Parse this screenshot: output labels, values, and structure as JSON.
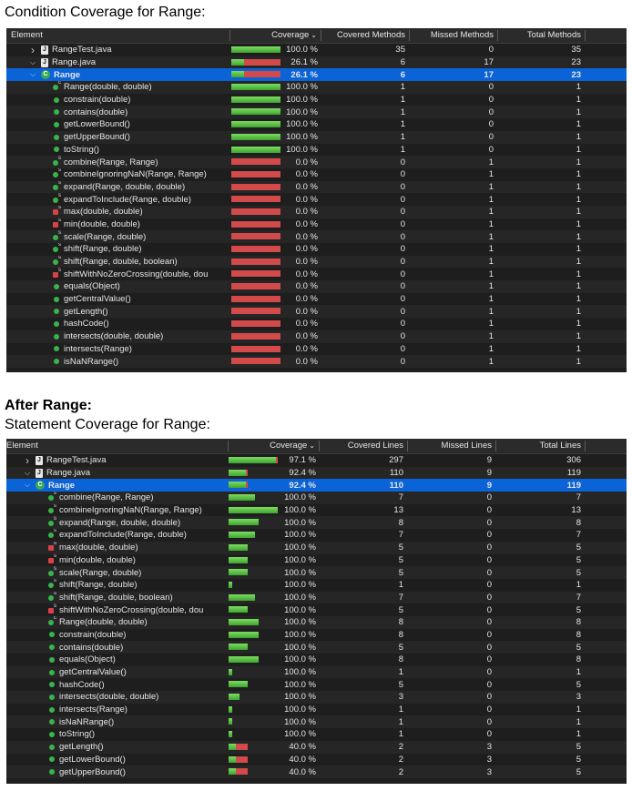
{
  "captions": {
    "condition_title": "Condition Coverage for Range:",
    "after_title": "After Range:",
    "statement_title": "Statement Coverage for Range:"
  },
  "condition_table": {
    "headers": {
      "element": "Element",
      "coverage": "Coverage",
      "covered": "Covered Methods",
      "missed": "Missed Methods",
      "total": "Total Methods"
    },
    "rows": [
      {
        "name": "RangeTest.java",
        "kind": "file",
        "level": 1,
        "exp": "collapsed",
        "pct": "100.0 %",
        "cov": 1.0,
        "covered": "35",
        "missed": "0",
        "total": "35"
      },
      {
        "name": "Range.java",
        "kind": "file",
        "level": 1,
        "exp": "expanded",
        "pct": "26.1 %",
        "cov": 0.261,
        "covered": "6",
        "missed": "17",
        "total": "23"
      },
      {
        "name": "Range",
        "kind": "class",
        "level": 2,
        "exp": "expanded",
        "pct": "26.1 %",
        "cov": 0.261,
        "covered": "6",
        "missed": "17",
        "total": "23",
        "selected": true
      },
      {
        "name": "Range(double, double)",
        "kind": "m-ctor",
        "level": 3,
        "pct": "100.0 %",
        "cov": 1.0,
        "covered": "1",
        "missed": "0",
        "total": "1"
      },
      {
        "name": "constrain(double)",
        "kind": "m-pub",
        "level": 3,
        "pct": "100.0 %",
        "cov": 1.0,
        "covered": "1",
        "missed": "0",
        "total": "1"
      },
      {
        "name": "contains(double)",
        "kind": "m-pub",
        "level": 3,
        "pct": "100.0 %",
        "cov": 1.0,
        "covered": "1",
        "missed": "0",
        "total": "1"
      },
      {
        "name": "getLowerBound()",
        "kind": "m-pub",
        "level": 3,
        "pct": "100.0 %",
        "cov": 1.0,
        "covered": "1",
        "missed": "0",
        "total": "1"
      },
      {
        "name": "getUpperBound()",
        "kind": "m-pub",
        "level": 3,
        "pct": "100.0 %",
        "cov": 1.0,
        "covered": "1",
        "missed": "0",
        "total": "1"
      },
      {
        "name": "toString()",
        "kind": "m-pub",
        "level": 3,
        "pct": "100.0 %",
        "cov": 1.0,
        "covered": "1",
        "missed": "0",
        "total": "1"
      },
      {
        "name": "combine(Range, Range)",
        "kind": "m-stat-g",
        "level": 3,
        "pct": "0.0 %",
        "cov": 0.0,
        "covered": "0",
        "missed": "1",
        "total": "1"
      },
      {
        "name": "combineIgnoringNaN(Range, Range)",
        "kind": "m-stat-g",
        "level": 3,
        "pct": "0.0 %",
        "cov": 0.0,
        "covered": "0",
        "missed": "1",
        "total": "1"
      },
      {
        "name": "expand(Range, double, double)",
        "kind": "m-stat-g",
        "level": 3,
        "pct": "0.0 %",
        "cov": 0.0,
        "covered": "0",
        "missed": "1",
        "total": "1"
      },
      {
        "name": "expandToInclude(Range, double)",
        "kind": "m-stat-g",
        "level": 3,
        "pct": "0.0 %",
        "cov": 0.0,
        "covered": "0",
        "missed": "1",
        "total": "1"
      },
      {
        "name": "max(double, double)",
        "kind": "m-stat-r",
        "level": 3,
        "pct": "0.0 %",
        "cov": 0.0,
        "covered": "0",
        "missed": "1",
        "total": "1"
      },
      {
        "name": "min(double, double)",
        "kind": "m-stat-r",
        "level": 3,
        "pct": "0.0 %",
        "cov": 0.0,
        "covered": "0",
        "missed": "1",
        "total": "1"
      },
      {
        "name": "scale(Range, double)",
        "kind": "m-stat-g",
        "level": 3,
        "pct": "0.0 %",
        "cov": 0.0,
        "covered": "0",
        "missed": "1",
        "total": "1"
      },
      {
        "name": "shift(Range, double)",
        "kind": "m-stat-g",
        "level": 3,
        "pct": "0.0 %",
        "cov": 0.0,
        "covered": "0",
        "missed": "1",
        "total": "1"
      },
      {
        "name": "shift(Range, double, boolean)",
        "kind": "m-stat-g",
        "level": 3,
        "pct": "0.0 %",
        "cov": 0.0,
        "covered": "0",
        "missed": "1",
        "total": "1"
      },
      {
        "name": "shiftWithNoZeroCrossing(double, dou",
        "kind": "m-stat-r",
        "level": 3,
        "pct": "0.0 %",
        "cov": 0.0,
        "covered": "0",
        "missed": "1",
        "total": "1"
      },
      {
        "name": "equals(Object)",
        "kind": "m-pub",
        "level": 3,
        "pct": "0.0 %",
        "cov": 0.0,
        "covered": "0",
        "missed": "1",
        "total": "1"
      },
      {
        "name": "getCentralValue()",
        "kind": "m-pub",
        "level": 3,
        "pct": "0.0 %",
        "cov": 0.0,
        "covered": "0",
        "missed": "1",
        "total": "1"
      },
      {
        "name": "getLength()",
        "kind": "m-pub",
        "level": 3,
        "pct": "0.0 %",
        "cov": 0.0,
        "covered": "0",
        "missed": "1",
        "total": "1"
      },
      {
        "name": "hashCode()",
        "kind": "m-pub",
        "level": 3,
        "pct": "0.0 %",
        "cov": 0.0,
        "covered": "0",
        "missed": "1",
        "total": "1"
      },
      {
        "name": "intersects(double, double)",
        "kind": "m-pub",
        "level": 3,
        "pct": "0.0 %",
        "cov": 0.0,
        "covered": "0",
        "missed": "1",
        "total": "1"
      },
      {
        "name": "intersects(Range)",
        "kind": "m-pub",
        "level": 3,
        "pct": "0.0 %",
        "cov": 0.0,
        "covered": "0",
        "missed": "1",
        "total": "1"
      },
      {
        "name": "isNaNRange()",
        "kind": "m-pub",
        "level": 3,
        "pct": "0.0 %",
        "cov": 0.0,
        "covered": "0",
        "missed": "1",
        "total": "1"
      }
    ]
  },
  "statement_table": {
    "headers": {
      "element": "Element",
      "coverage": "Coverage",
      "covered": "Covered Lines",
      "missed": "Missed Lines",
      "total": "Total Lines"
    },
    "rows": [
      {
        "name": "RangeTest.java",
        "kind": "file",
        "level": 1,
        "exp": "collapsed",
        "pct": "97.1 %",
        "cov": 0.971,
        "covered": "297",
        "missed": "9",
        "total": "306",
        "barlen": 1.0
      },
      {
        "name": "Range.java",
        "kind": "file",
        "level": 1,
        "exp": "expanded",
        "pct": "92.4 %",
        "cov": 0.924,
        "covered": "110",
        "missed": "9",
        "total": "119",
        "barlen": 0.39
      },
      {
        "name": "Range",
        "kind": "class",
        "level": 2,
        "exp": "expanded",
        "pct": "92.4 %",
        "cov": 0.924,
        "covered": "110",
        "missed": "9",
        "total": "119",
        "selected": true,
        "barlen": 0.39
      },
      {
        "name": "combine(Range, Range)",
        "kind": "m-stat-g",
        "level": 3,
        "pct": "100.0 %",
        "cov": 1.0,
        "covered": "7",
        "missed": "0",
        "total": "7",
        "barlen": 0.54
      },
      {
        "name": "combineIgnoringNaN(Range, Range)",
        "kind": "m-stat-g",
        "level": 3,
        "pct": "100.0 %",
        "cov": 1.0,
        "covered": "13",
        "missed": "0",
        "total": "13",
        "barlen": 1.0
      },
      {
        "name": "expand(Range, double, double)",
        "kind": "m-stat-g",
        "level": 3,
        "pct": "100.0 %",
        "cov": 1.0,
        "covered": "8",
        "missed": "0",
        "total": "8",
        "barlen": 0.62
      },
      {
        "name": "expandToInclude(Range, double)",
        "kind": "m-stat-g",
        "level": 3,
        "pct": "100.0 %",
        "cov": 1.0,
        "covered": "7",
        "missed": "0",
        "total": "7",
        "barlen": 0.54
      },
      {
        "name": "max(double, double)",
        "kind": "m-stat-r",
        "level": 3,
        "pct": "100.0 %",
        "cov": 1.0,
        "covered": "5",
        "missed": "0",
        "total": "5",
        "barlen": 0.39
      },
      {
        "name": "min(double, double)",
        "kind": "m-stat-r",
        "level": 3,
        "pct": "100.0 %",
        "cov": 1.0,
        "covered": "5",
        "missed": "0",
        "total": "5",
        "barlen": 0.39
      },
      {
        "name": "scale(Range, double)",
        "kind": "m-stat-g",
        "level": 3,
        "pct": "100.0 %",
        "cov": 1.0,
        "covered": "5",
        "missed": "0",
        "total": "5",
        "barlen": 0.39
      },
      {
        "name": "shift(Range, double)",
        "kind": "m-stat-g",
        "level": 3,
        "pct": "100.0 %",
        "cov": 1.0,
        "covered": "1",
        "missed": "0",
        "total": "1",
        "barlen": 0.08
      },
      {
        "name": "shift(Range, double, boolean)",
        "kind": "m-stat-g",
        "level": 3,
        "pct": "100.0 %",
        "cov": 1.0,
        "covered": "7",
        "missed": "0",
        "total": "7",
        "barlen": 0.54
      },
      {
        "name": "shiftWithNoZeroCrossing(double, dou",
        "kind": "m-stat-r",
        "level": 3,
        "pct": "100.0 %",
        "cov": 1.0,
        "covered": "5",
        "missed": "0",
        "total": "5",
        "barlen": 0.39
      },
      {
        "name": "Range(double, double)",
        "kind": "m-ctor",
        "level": 3,
        "pct": "100.0 %",
        "cov": 1.0,
        "covered": "8",
        "missed": "0",
        "total": "8",
        "barlen": 0.62
      },
      {
        "name": "constrain(double)",
        "kind": "m-pub",
        "level": 3,
        "pct": "100.0 %",
        "cov": 1.0,
        "covered": "8",
        "missed": "0",
        "total": "8",
        "barlen": 0.62
      },
      {
        "name": "contains(double)",
        "kind": "m-pub",
        "level": 3,
        "pct": "100.0 %",
        "cov": 1.0,
        "covered": "5",
        "missed": "0",
        "total": "5",
        "barlen": 0.39
      },
      {
        "name": "equals(Object)",
        "kind": "m-pub",
        "level": 3,
        "pct": "100.0 %",
        "cov": 1.0,
        "covered": "8",
        "missed": "0",
        "total": "8",
        "barlen": 0.62
      },
      {
        "name": "getCentralValue()",
        "kind": "m-pub",
        "level": 3,
        "pct": "100.0 %",
        "cov": 1.0,
        "covered": "1",
        "missed": "0",
        "total": "1",
        "barlen": 0.08
      },
      {
        "name": "hashCode()",
        "kind": "m-pub",
        "level": 3,
        "pct": "100.0 %",
        "cov": 1.0,
        "covered": "5",
        "missed": "0",
        "total": "5",
        "barlen": 0.39
      },
      {
        "name": "intersects(double, double)",
        "kind": "m-pub",
        "level": 3,
        "pct": "100.0 %",
        "cov": 1.0,
        "covered": "3",
        "missed": "0",
        "total": "3",
        "barlen": 0.23
      },
      {
        "name": "intersects(Range)",
        "kind": "m-pub",
        "level": 3,
        "pct": "100.0 %",
        "cov": 1.0,
        "covered": "1",
        "missed": "0",
        "total": "1",
        "barlen": 0.08
      },
      {
        "name": "isNaNRange()",
        "kind": "m-pub",
        "level": 3,
        "pct": "100.0 %",
        "cov": 1.0,
        "covered": "1",
        "missed": "0",
        "total": "1",
        "barlen": 0.08
      },
      {
        "name": "toString()",
        "kind": "m-pub",
        "level": 3,
        "pct": "100.0 %",
        "cov": 1.0,
        "covered": "1",
        "missed": "0",
        "total": "1",
        "barlen": 0.08
      },
      {
        "name": "getLength()",
        "kind": "m-pub",
        "level": 3,
        "pct": "40.0 %",
        "cov": 0.4,
        "covered": "2",
        "missed": "3",
        "total": "5",
        "barlen": 0.39
      },
      {
        "name": "getLowerBound()",
        "kind": "m-pub",
        "level": 3,
        "pct": "40.0 %",
        "cov": 0.4,
        "covered": "2",
        "missed": "3",
        "total": "5",
        "barlen": 0.39
      },
      {
        "name": "getUpperBound()",
        "kind": "m-pub",
        "level": 3,
        "pct": "40.0 %",
        "cov": 0.4,
        "covered": "2",
        "missed": "3",
        "total": "5",
        "barlen": 0.39
      }
    ]
  }
}
